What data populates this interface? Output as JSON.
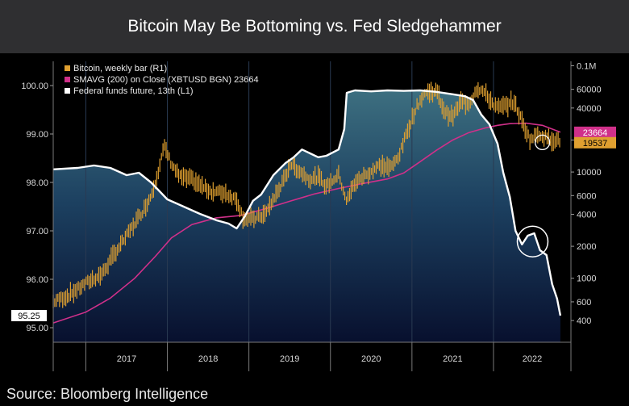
{
  "chart_data": {
    "type": "line",
    "title": "Bitcoin May Be Bottoming vs. Fed Sledgehammer",
    "source": "Source: Bloomberg Intelligence",
    "legend": [
      {
        "label": "Bitcoin, weekly bar (R1)",
        "color": "#e0a030"
      },
      {
        "label": "SMAVG (200)  on Close (XBTUSD BGN) 23664",
        "color": "#d0308a"
      },
      {
        "label": "Federal funds future, 13th (L1)",
        "color": "#ffffff"
      }
    ],
    "left_axis": {
      "ticks": [
        "100.00",
        "99.00",
        "98.00",
        "97.00",
        "96.00",
        "95.00"
      ],
      "range": [
        94.7,
        100.5
      ],
      "last_value_label": "95.25"
    },
    "right_axis": {
      "scale": "log",
      "ticks": [
        "0.1M",
        "60000",
        "40000",
        "20000",
        "10000",
        "6000",
        "4000",
        "2000",
        "1000",
        "600",
        "400"
      ],
      "range": [
        250,
        110000
      ],
      "last_value_labels": [
        {
          "text": "23664",
          "color": "#d0308a"
        },
        {
          "text": "19537",
          "color": "#e0a030"
        }
      ]
    },
    "x_axis": {
      "ticks": [
        "2017",
        "2018",
        "2019",
        "2020",
        "2021",
        "2022"
      ]
    },
    "series": [
      {
        "name": "Federal funds future, 13th (L1)",
        "axis": "left",
        "points": [
          [
            2016.6,
            98.27
          ],
          [
            2016.9,
            98.3
          ],
          [
            2017.1,
            98.35
          ],
          [
            2017.3,
            98.3
          ],
          [
            2017.5,
            98.15
          ],
          [
            2017.65,
            98.2
          ],
          [
            2017.8,
            98.0
          ],
          [
            2018.0,
            97.65
          ],
          [
            2018.2,
            97.5
          ],
          [
            2018.4,
            97.35
          ],
          [
            2018.6,
            97.22
          ],
          [
            2018.75,
            97.15
          ],
          [
            2018.85,
            97.05
          ],
          [
            2018.95,
            97.3
          ],
          [
            2019.05,
            97.62
          ],
          [
            2019.15,
            97.75
          ],
          [
            2019.3,
            98.15
          ],
          [
            2019.45,
            98.4
          ],
          [
            2019.55,
            98.52
          ],
          [
            2019.65,
            98.68
          ],
          [
            2019.75,
            98.6
          ],
          [
            2019.85,
            98.52
          ],
          [
            2019.95,
            98.55
          ],
          [
            2020.1,
            98.68
          ],
          [
            2020.17,
            99.1
          ],
          [
            2020.2,
            99.85
          ],
          [
            2020.3,
            99.9
          ],
          [
            2020.5,
            99.88
          ],
          [
            2020.7,
            99.9
          ],
          [
            2020.9,
            99.89
          ],
          [
            2021.1,
            99.9
          ],
          [
            2021.3,
            99.87
          ],
          [
            2021.5,
            99.82
          ],
          [
            2021.65,
            99.78
          ],
          [
            2021.75,
            99.7
          ],
          [
            2021.85,
            99.4
          ],
          [
            2021.95,
            99.2
          ],
          [
            2022.05,
            98.8
          ],
          [
            2022.12,
            98.2
          ],
          [
            2022.2,
            97.7
          ],
          [
            2022.27,
            97.0
          ],
          [
            2022.35,
            96.72
          ],
          [
            2022.42,
            96.9
          ],
          [
            2022.5,
            96.95
          ],
          [
            2022.57,
            96.6
          ],
          [
            2022.65,
            96.5
          ],
          [
            2022.72,
            95.9
          ],
          [
            2022.78,
            95.6
          ],
          [
            2022.82,
            95.25
          ]
        ]
      },
      {
        "name": "Bitcoin, weekly bar (R1)",
        "axis": "right",
        "points": [
          [
            2016.6,
            600
          ],
          [
            2016.8,
            700
          ],
          [
            2017.0,
            900
          ],
          [
            2017.2,
            1100
          ],
          [
            2017.35,
            1700
          ],
          [
            2017.5,
            2500
          ],
          [
            2017.6,
            3300
          ],
          [
            2017.7,
            4300
          ],
          [
            2017.8,
            6000
          ],
          [
            2017.9,
            11000
          ],
          [
            2017.96,
            17500
          ],
          [
            2018.05,
            12000
          ],
          [
            2018.15,
            9000
          ],
          [
            2018.3,
            8500
          ],
          [
            2018.4,
            7500
          ],
          [
            2018.55,
            6500
          ],
          [
            2018.7,
            6400
          ],
          [
            2018.85,
            5500
          ],
          [
            2018.93,
            3700
          ],
          [
            2019.05,
            3600
          ],
          [
            2019.2,
            4000
          ],
          [
            2019.35,
            6500
          ],
          [
            2019.45,
            9000
          ],
          [
            2019.5,
            12000
          ],
          [
            2019.6,
            10500
          ],
          [
            2019.75,
            8500
          ],
          [
            2019.85,
            9000
          ],
          [
            2019.95,
            7300
          ],
          [
            2020.1,
            9500
          ],
          [
            2020.2,
            5300
          ],
          [
            2020.3,
            8000
          ],
          [
            2020.45,
            9500
          ],
          [
            2020.6,
            11500
          ],
          [
            2020.75,
            11000
          ],
          [
            2020.85,
            15000
          ],
          [
            2020.95,
            25000
          ],
          [
            2021.05,
            40000
          ],
          [
            2021.15,
            55000
          ],
          [
            2021.3,
            58000
          ],
          [
            2021.4,
            37000
          ],
          [
            2021.5,
            33000
          ],
          [
            2021.6,
            46000
          ],
          [
            2021.7,
            44000
          ],
          [
            2021.8,
            62000
          ],
          [
            2021.88,
            57000
          ],
          [
            2021.95,
            48000
          ],
          [
            2022.05,
            40000
          ],
          [
            2022.15,
            42000
          ],
          [
            2022.25,
            46000
          ],
          [
            2022.35,
            30000
          ],
          [
            2022.45,
            20000
          ],
          [
            2022.55,
            23000
          ],
          [
            2022.65,
            21000
          ],
          [
            2022.75,
            20000
          ],
          [
            2022.82,
            19537
          ]
        ]
      },
      {
        "name": "SMAVG (200) on Close (XBTUSD BGN)",
        "axis": "right",
        "points": [
          [
            2016.6,
            380
          ],
          [
            2017.0,
            480
          ],
          [
            2017.3,
            650
          ],
          [
            2017.6,
            1000
          ],
          [
            2017.85,
            1600
          ],
          [
            2018.05,
            2400
          ],
          [
            2018.3,
            3200
          ],
          [
            2018.6,
            3700
          ],
          [
            2018.9,
            3900
          ],
          [
            2019.2,
            4500
          ],
          [
            2019.5,
            5300
          ],
          [
            2019.8,
            6200
          ],
          [
            2020.1,
            7000
          ],
          [
            2020.4,
            7800
          ],
          [
            2020.7,
            8600
          ],
          [
            2020.9,
            9800
          ],
          [
            2021.1,
            12500
          ],
          [
            2021.3,
            16000
          ],
          [
            2021.5,
            20000
          ],
          [
            2021.7,
            23500
          ],
          [
            2021.9,
            26000
          ],
          [
            2022.05,
            27500
          ],
          [
            2022.2,
            28500
          ],
          [
            2022.4,
            28800
          ],
          [
            2022.6,
            27500
          ],
          [
            2022.82,
            23664
          ]
        ]
      }
    ],
    "annotations": [
      {
        "type": "circle",
        "near": "Bitcoin 2022 low"
      },
      {
        "type": "circle",
        "near": "Fed funds future mid-2022"
      }
    ]
  }
}
